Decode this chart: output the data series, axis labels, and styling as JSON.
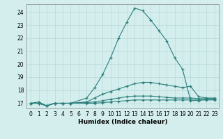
{
  "bg_color": "#d4eeee",
  "grid_color": "#b8d8d8",
  "line_color": "#2a7f7a",
  "xlabel": "Humidex (Indice chaleur)",
  "ylim": [
    16.6,
    24.6
  ],
  "xlim": [
    -0.5,
    23.5
  ],
  "yticks": [
    17,
    18,
    19,
    20,
    21,
    22,
    23,
    24
  ],
  "xticks": [
    0,
    1,
    2,
    3,
    4,
    5,
    6,
    7,
    8,
    9,
    10,
    11,
    12,
    13,
    14,
    15,
    16,
    17,
    18,
    19,
    20,
    21,
    22,
    23
  ],
  "series": [
    {
      "x": [
        0,
        1,
        2,
        3,
        4,
        5,
        7,
        8,
        9,
        10,
        11,
        12,
        13,
        14,
        15,
        16,
        17,
        18,
        19,
        20,
        21,
        22,
        23
      ],
      "y": [
        17.0,
        17.1,
        16.8,
        17.0,
        17.0,
        17.0,
        17.4,
        18.2,
        19.2,
        20.5,
        22.0,
        23.2,
        24.3,
        24.1,
        23.4,
        22.6,
        21.8,
        20.5,
        19.6,
        17.2,
        17.2,
        17.3,
        17.3
      ]
    },
    {
      "x": [
        0,
        1,
        2,
        3,
        4,
        5,
        7,
        8,
        9,
        10,
        11,
        12,
        13,
        14,
        15,
        16,
        17,
        18,
        19,
        20,
        21,
        22,
        23
      ],
      "y": [
        17.0,
        17.0,
        16.8,
        17.0,
        17.0,
        17.0,
        17.1,
        17.4,
        17.7,
        17.9,
        18.1,
        18.3,
        18.5,
        18.6,
        18.6,
        18.5,
        18.4,
        18.3,
        18.2,
        18.3,
        17.5,
        17.4,
        17.4
      ]
    },
    {
      "x": [
        0,
        1,
        2,
        3,
        4,
        5,
        7,
        8,
        9,
        10,
        11,
        12,
        13,
        14,
        15,
        16,
        17,
        18,
        19,
        20,
        21,
        22,
        23
      ],
      "y": [
        17.0,
        17.0,
        16.8,
        17.0,
        17.0,
        17.0,
        17.05,
        17.1,
        17.2,
        17.3,
        17.4,
        17.5,
        17.55,
        17.55,
        17.55,
        17.5,
        17.45,
        17.4,
        17.4,
        17.4,
        17.35,
        17.35,
        17.35
      ]
    },
    {
      "x": [
        0,
        1,
        2,
        3,
        4,
        5,
        7,
        8,
        9,
        10,
        11,
        12,
        13,
        14,
        15,
        16,
        17,
        18,
        19,
        20,
        21,
        22,
        23
      ],
      "y": [
        17.0,
        17.0,
        16.8,
        17.0,
        17.0,
        17.0,
        17.0,
        17.0,
        17.05,
        17.1,
        17.15,
        17.2,
        17.25,
        17.25,
        17.25,
        17.25,
        17.25,
        17.25,
        17.25,
        17.25,
        17.25,
        17.25,
        17.25
      ]
    }
  ]
}
